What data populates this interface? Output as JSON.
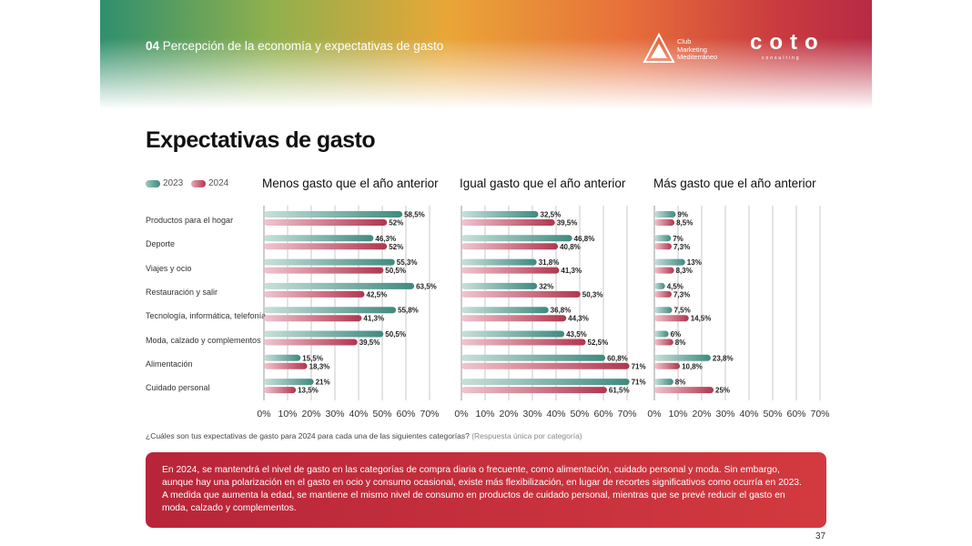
{
  "header": {
    "section_number": "04",
    "section_title": "Percepción de la economía y expectativas de gasto",
    "club_logo_lines": [
      "Club",
      "Marketing",
      "Mediterráneo"
    ],
    "coto_logo": "coto",
    "coto_sub": "consulting",
    "gradient_colors": [
      "#2f8f6e",
      "#e9a637",
      "#c93a3f"
    ]
  },
  "title": "Expectativas de gasto",
  "legend": {
    "label_2023": "2023",
    "label_2024": "2024"
  },
  "colors": {
    "bar_2023": "#3f8a7f",
    "bar_2024": "#b1364f",
    "summary_bg": "#c22f3d"
  },
  "chart_data": {
    "type": "bar",
    "orientation": "horizontal",
    "categories": [
      "Productos para el hogar",
      "Deporte",
      "Viajes y ocio",
      "Restauración y salir",
      "Tecnología, informática, telefonía",
      "Moda, calzado y complementos",
      "Alimentación",
      "Cuidado personal"
    ],
    "xlim": [
      0,
      70
    ],
    "x_ticks": [
      "0%",
      "10%",
      "20%",
      "30%",
      "40%",
      "50%",
      "60%",
      "70%"
    ],
    "grid": true,
    "legend_position": "top-left",
    "panels": [
      {
        "title": "Menos gasto que el año anterior",
        "series": [
          {
            "name": "2023",
            "values": [
              58.5,
              46.3,
              55.3,
              63.5,
              55.8,
              50.5,
              15.5,
              21
            ],
            "labels": [
              "58,5%",
              "46,3%",
              "55,3%",
              "63,5%",
              "55,8%",
              "50,5%",
              "15,5%",
              "21%"
            ]
          },
          {
            "name": "2024",
            "values": [
              52,
              52,
              50.5,
              42.5,
              41.3,
              39.5,
              18.3,
              13.5
            ],
            "labels": [
              "52%",
              "52%",
              "50,5%",
              "42,5%",
              "41,3%",
              "39,5%",
              "18,3%",
              "13,5%"
            ]
          }
        ]
      },
      {
        "title": "Igual gasto que el año anterior",
        "series": [
          {
            "name": "2023",
            "values": [
              32.5,
              46.8,
              31.8,
              32,
              36.8,
              43.5,
              60.8,
              71
            ],
            "labels": [
              "32,5%",
              "46,8%",
              "31,8%",
              "32%",
              "36,8%",
              "43,5%",
              "60,8%",
              "71%"
            ]
          },
          {
            "name": "2024",
            "values": [
              39.5,
              40.8,
              41.3,
              50.3,
              44.3,
              52.5,
              71,
              61.5
            ],
            "labels": [
              "39,5%",
              "40,8%",
              "41,3%",
              "50,3%",
              "44,3%",
              "52,5%",
              "71%",
              "61,5%"
            ]
          }
        ]
      },
      {
        "title": "Más gasto que el año anterior",
        "series": [
          {
            "name": "2023",
            "values": [
              9,
              7,
              13,
              4.5,
              7.5,
              6,
              23.8,
              8
            ],
            "labels": [
              "9%",
              "7%",
              "13%",
              "4,5%",
              "7,5%",
              "6%",
              "23,8%",
              "8%"
            ]
          },
          {
            "name": "2024",
            "values": [
              8.5,
              7.3,
              8.3,
              7.3,
              14.5,
              8,
              10.8,
              25
            ],
            "labels": [
              "8,5%",
              "7,3%",
              "8,3%",
              "7,3%",
              "14,5%",
              "8%",
              "10,8%",
              "25%"
            ]
          }
        ]
      }
    ]
  },
  "question": "¿Cuáles son tus expectativas de gasto para 2024 para cada una de las siguientes categorías?",
  "question_note": "(Respuesta única por categoría)",
  "summary": "En 2024, se mantendrá el nivel de gasto en las categorías de compra diaria o frecuente, como alimentación, cuidado personal y moda. Sin embargo, aunque hay una polarización en el gasto en ocio y consumo ocasional, existe más flexibilización, en lugar de recortes significativos como ocurría en 2023. A medida que aumenta la edad, se mantiene el mismo nivel de consumo en productos de cuidado personal, mientras que se prevé reducir el gasto en moda, calzado y complementos.",
  "page_number": "37"
}
